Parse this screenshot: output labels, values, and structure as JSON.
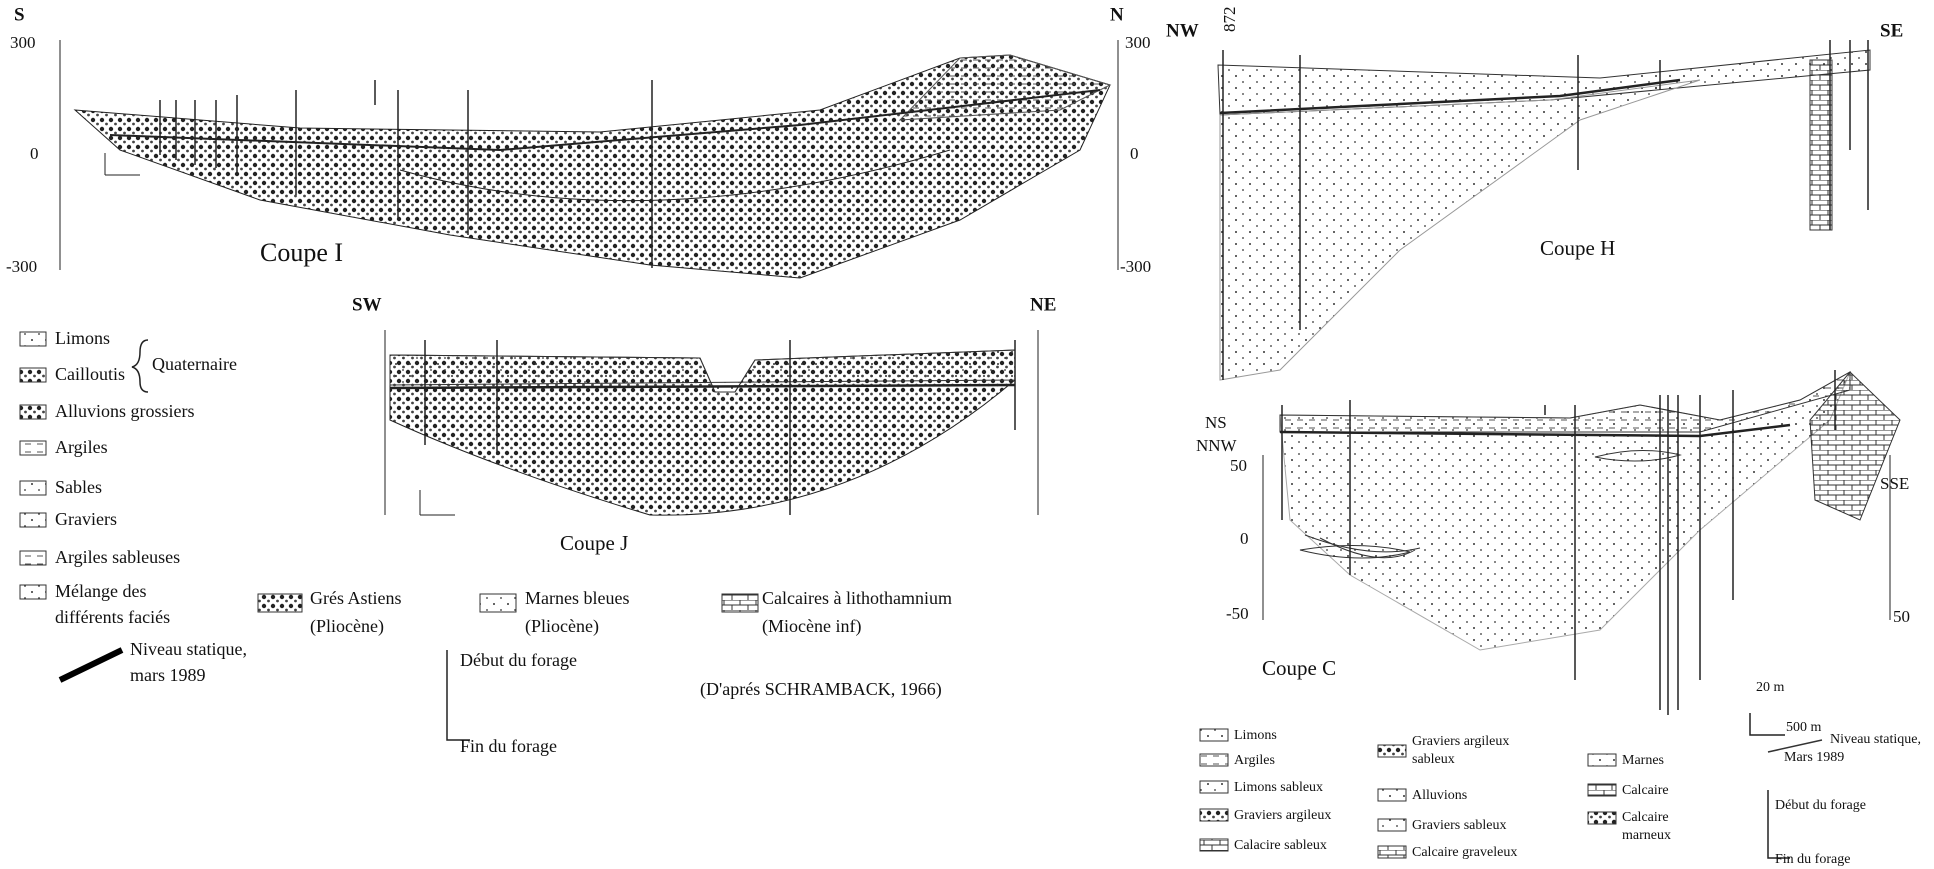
{
  "coupe_i": {
    "title": "Coupe I",
    "left_dir": "S",
    "right_dir": "N",
    "left_axis": [
      "300",
      "0",
      "-300"
    ],
    "right_axis": [
      "300",
      "0",
      "-300"
    ]
  },
  "coupe_j": {
    "title": "Coupe J",
    "left_dir": "SW",
    "right_dir": "NE"
  },
  "legend_left": {
    "items": [
      "Limons",
      "Cailloutis",
      "Alluvions grossiers",
      "Argiles",
      "Sables",
      "Graviers",
      "Argiles sableuses",
      [
        "Mélange des",
        "différents faciés"
      ],
      [
        "Grés Astiens",
        "(Pliocène)"
      ],
      [
        "Marnes bleues",
        "(Pliocène)"
      ],
      [
        "Calcaires à lithothamnium",
        "(Miocène inf)"
      ]
    ],
    "group": "Quaternaire",
    "level": [
      "Niveau statique,",
      "mars 1989"
    ],
    "start": "Début du forage",
    "end": "Fin du forage",
    "source": "(D'aprés SCHRAMBACK, 1966)"
  },
  "coupe_h": {
    "title": "Coupe H",
    "left_dir": "NW",
    "right_dir": "SE",
    "borehole": "872"
  },
  "coupe_c": {
    "title": "Coupe C",
    "top_left_dir": "NS",
    "left_dir": "NNW",
    "right_dir": "SSE",
    "left_axis": [
      "50",
      "0",
      "-50"
    ],
    "right_axis": [
      "50"
    ],
    "scale_v": "20 m",
    "scale_h": "500 m"
  },
  "legend_right": {
    "items": [
      "Limons",
      "Argiles",
      "Limons sableux",
      "Graviers argileux",
      "Calacire sableux",
      [
        "Graviers argileux",
        "sableux"
      ],
      "Alluvions",
      "Graviers sableux",
      "Calcaire graveleux",
      "Marnes",
      "Calcaire",
      [
        "Calcaire",
        "marneux"
      ]
    ],
    "level": [
      "Niveau statique,",
      "Mars 1989"
    ],
    "start": "Début du forage",
    "end": "Fin du forage"
  }
}
